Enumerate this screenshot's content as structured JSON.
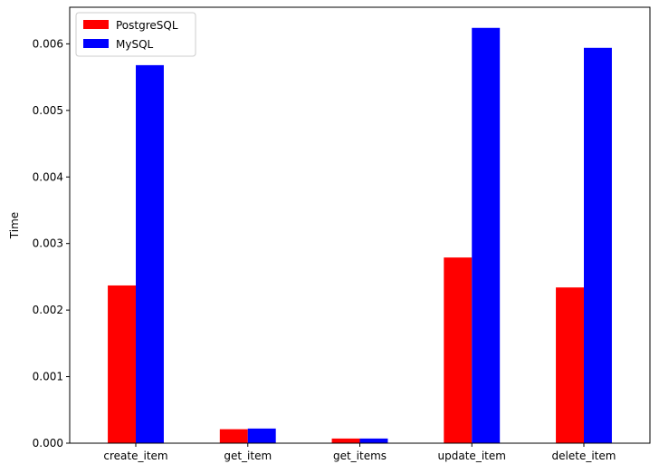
{
  "chart_data": {
    "type": "bar",
    "title": "",
    "xlabel": "",
    "ylabel": "Time",
    "categories": [
      "create_item",
      "get_item",
      "get_items",
      "update_item",
      "delete_item"
    ],
    "series": [
      {
        "name": "PostgreSQL",
        "color": "#ff0000",
        "values": [
          0.00237,
          0.00021,
          7e-05,
          0.00279,
          0.00234
        ]
      },
      {
        "name": "MySQL",
        "color": "#0000ff",
        "values": [
          0.00568,
          0.00022,
          7e-05,
          0.00624,
          0.00594
        ]
      }
    ],
    "ylim": [
      0,
      0.00655
    ],
    "yticks": [
      0.0,
      0.001,
      0.002,
      0.003,
      0.004,
      0.005,
      0.006
    ],
    "ytick_labels": [
      "0.000",
      "0.001",
      "0.002",
      "0.003",
      "0.004",
      "0.005",
      "0.006"
    ],
    "grid": false,
    "legend_position": "upper-left"
  }
}
